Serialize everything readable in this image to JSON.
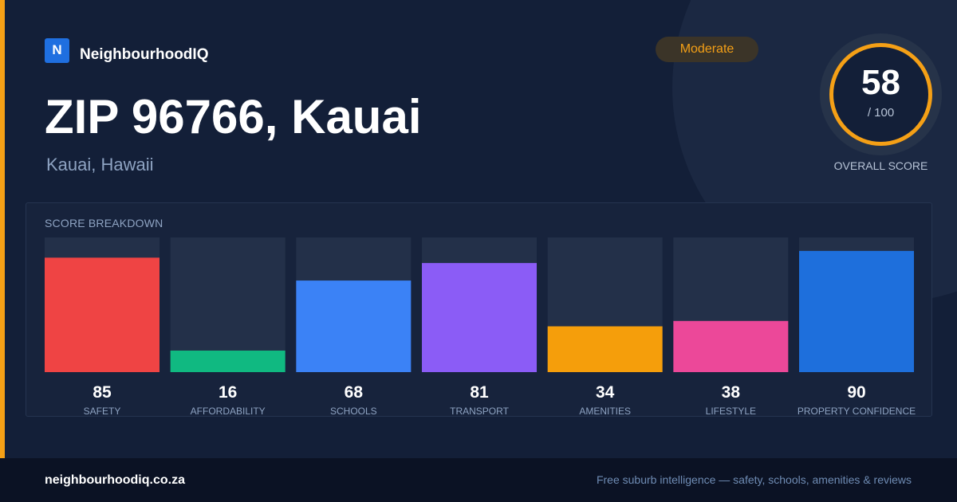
{
  "brand": {
    "logo_letter": "N",
    "name": "NeighbourhoodIQ"
  },
  "badge": {
    "label": "Moderate",
    "color": "#f5a016"
  },
  "location": {
    "title": "ZIP 96766, Kauai",
    "subtitle": "Kauai, Hawaii"
  },
  "overall": {
    "value": "58",
    "max_label": "/ 100",
    "label": "OVERALL SCORE",
    "fraction": 0.58
  },
  "breakdown": {
    "title": "SCORE BREAKDOWN"
  },
  "chart_data": {
    "type": "bar",
    "title": "SCORE BREAKDOWN",
    "ylim": [
      0,
      100
    ],
    "grid": false,
    "categories": [
      "SAFETY",
      "AFFORDABILITY",
      "SCHOOLS",
      "TRANSPORT",
      "AMENITIES",
      "LIFESTYLE",
      "PROPERTY CONFIDENCE"
    ],
    "values": [
      85,
      16,
      68,
      81,
      34,
      38,
      90
    ],
    "colors": [
      "#ef4444",
      "#10b981",
      "#3b82f6",
      "#8b5cf6",
      "#f59e0b",
      "#ec4899",
      "#1e6fdc"
    ]
  },
  "footer": {
    "url": "neighbourhoodiq.co.za",
    "tagline": "Free suburb intelligence — safety, schools, amenities & reviews"
  }
}
